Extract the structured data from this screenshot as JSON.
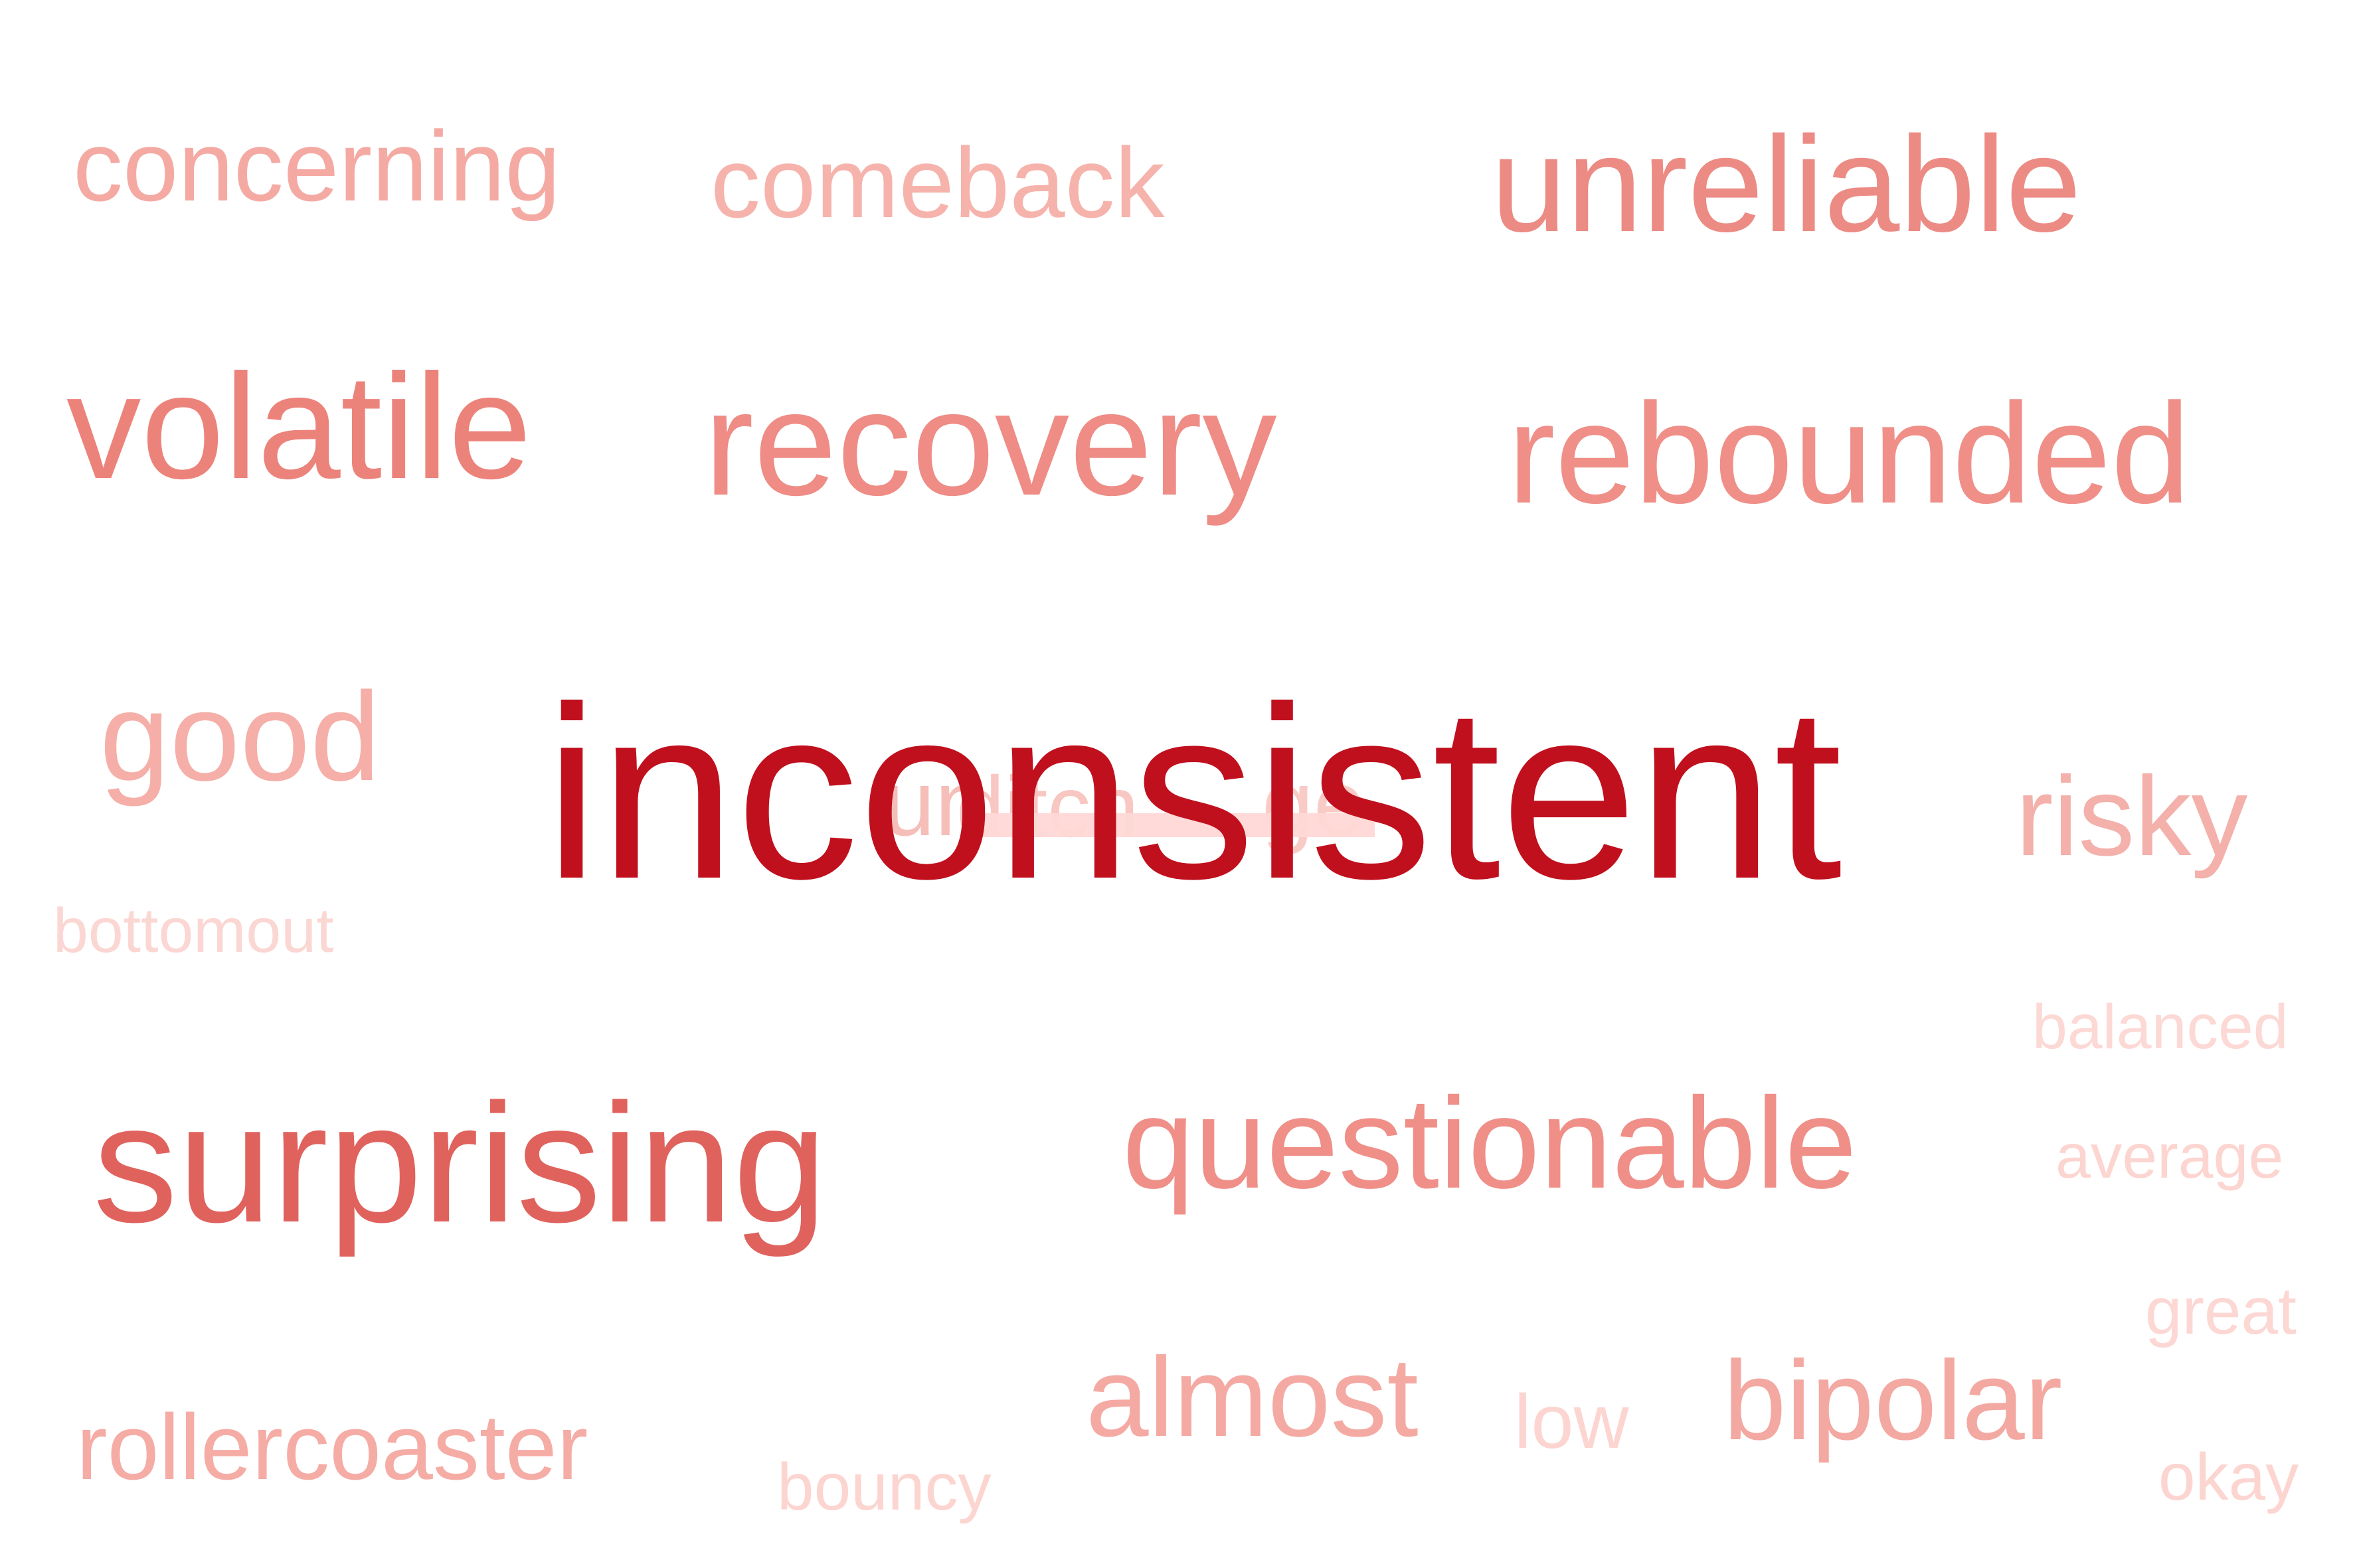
{
  "words": [
    {
      "text": "concerning",
      "color": "#f4aaa3"
    },
    {
      "text": "comeback",
      "color": "#f6b3ac"
    },
    {
      "text": "unreliable",
      "color": "#ec8b84"
    },
    {
      "text": "volatile",
      "color": "#ec837b"
    },
    {
      "text": "recovery",
      "color": "#ee8c85"
    },
    {
      "text": "rebounded",
      "color": "#ef8f88"
    },
    {
      "text": "good",
      "color": "#f5afa8"
    },
    {
      "text": "inconsistent",
      "color": "#c0101e"
    },
    {
      "text": "risky",
      "color": "#f4b0aa"
    },
    {
      "text": "bottomout",
      "color": "#fbd7d3"
    },
    {
      "text": "balanced",
      "color": "#fcd9d5"
    },
    {
      "text": "surprising",
      "color": "#e0625d"
    },
    {
      "text": "questionable",
      "color": "#ef8f88"
    },
    {
      "text": "average",
      "color": "#fcd5d1"
    },
    {
      "text": "great",
      "color": "#fcd7d3"
    },
    {
      "text": "almost",
      "color": "#f4aaa3"
    },
    {
      "text": "low",
      "color": "#fcd5d1"
    },
    {
      "text": "bipolar",
      "color": "#f3a8a1"
    },
    {
      "text": "rollercoaster",
      "color": "#f5aca5"
    },
    {
      "text": "bouncy",
      "color": "#fcd5d1"
    },
    {
      "text": "okay",
      "color": "#fcd5d1"
    }
  ]
}
